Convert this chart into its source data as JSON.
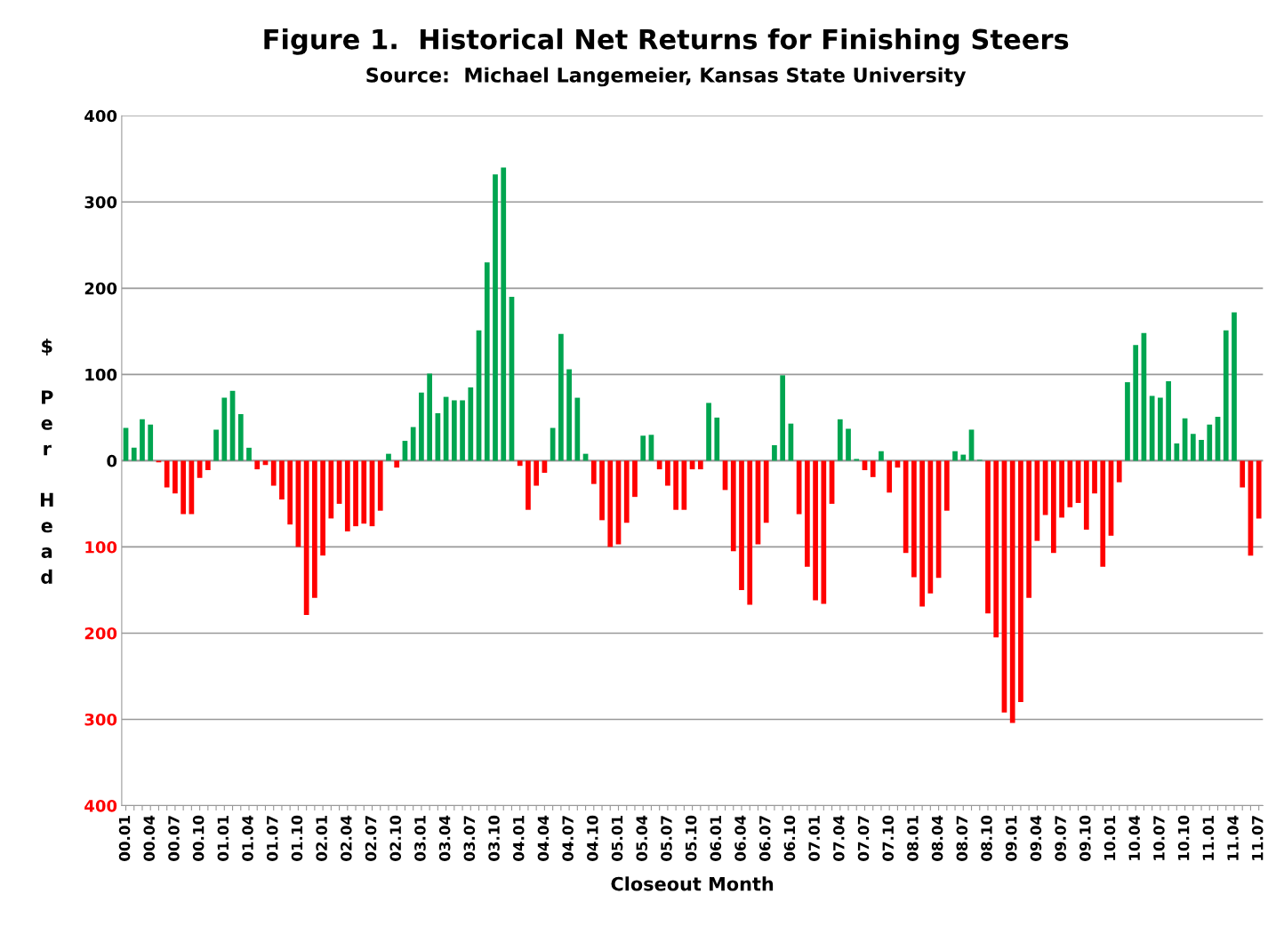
{
  "chart_data": {
    "type": "bar",
    "title": "Figure 1.  Historical Net Returns for Finishing Steers",
    "subtitle": "Source:  Michael Langemeier, Kansas State University",
    "xlabel": "Closeout Month",
    "ylabel": "$ Per Head",
    "categories": [
      "00.01",
      null,
      null,
      "00.04",
      null,
      null,
      "00.07",
      null,
      null,
      "00.10",
      null,
      null,
      "01.01",
      null,
      null,
      "01.04",
      null,
      null,
      "01.07",
      null,
      null,
      "01.10",
      null,
      null,
      "02.01",
      null,
      null,
      "02.04",
      null,
      null,
      "02.07",
      null,
      null,
      "02.10",
      null,
      null,
      "03.01",
      null,
      null,
      "03.04",
      null,
      null,
      "03.07",
      null,
      null,
      "03.10",
      null,
      null,
      "04.01",
      null,
      null,
      "04.04",
      null,
      null,
      "04.07",
      null,
      null,
      "04.10",
      null,
      null,
      "05.01",
      null,
      null,
      "05.04",
      null,
      null,
      "05.07",
      null,
      null,
      "05.10",
      null,
      null,
      "06.01",
      null,
      null,
      "06.04",
      null,
      null,
      "06.07",
      null,
      null,
      "06.10",
      null,
      null,
      "07.01",
      null,
      null,
      "07.04",
      null,
      null,
      "07.07",
      null,
      null,
      "07.10",
      null,
      null,
      "08.01",
      null,
      null,
      "08.04",
      null,
      null,
      "08.07",
      null,
      null,
      "08.10",
      null,
      null,
      "09.01",
      null,
      null,
      "09.04",
      null,
      null,
      "09.07",
      null,
      null,
      "09.10",
      null,
      null,
      "10.01",
      null,
      null,
      "10.04",
      null,
      null,
      "10.07",
      null,
      null,
      "10.10",
      null,
      null,
      "11.01",
      null,
      null,
      "11.04",
      null,
      null,
      "11.07"
    ],
    "values": [
      38,
      15,
      48,
      42,
      -2,
      -31,
      -38,
      -62,
      -62,
      -20,
      -11,
      36,
      73,
      81,
      54,
      15,
      -10,
      -5,
      -29,
      -45,
      -74,
      -100,
      -179,
      -159,
      -110,
      -67,
      -50,
      -82,
      -76,
      -73,
      -76,
      -58,
      8,
      -8,
      23,
      39,
      79,
      101,
      55,
      74,
      70,
      70,
      85,
      151,
      230,
      332,
      340,
      190,
      -6,
      -57,
      -29,
      -14,
      38,
      147,
      106,
      73,
      8,
      -27,
      -69,
      -100,
      -97,
      -72,
      -42,
      29,
      30,
      -10,
      -29,
      -57,
      -57,
      -10,
      -10,
      67,
      50,
      -34,
      -105,
      -150,
      -167,
      -97,
      -72,
      18,
      99,
      43,
      -62,
      -123,
      -162,
      -166,
      -50,
      48,
      37,
      2,
      -11,
      -19,
      11,
      -37,
      -8,
      -107,
      -135,
      -169,
      -154,
      -136,
      -58,
      11,
      7,
      36,
      1,
      -177,
      -205,
      -292,
      -304,
      -280,
      -159,
      -93,
      -63,
      -107,
      -66,
      -54,
      -49,
      -80,
      -38,
      -123,
      -87,
      -25,
      91,
      134,
      148,
      75,
      73,
      92,
      20,
      49,
      31,
      24,
      42,
      51,
      151,
      172,
      -31,
      -110,
      -67
    ],
    "colors": [
      "#00a550",
      "#00a550",
      "#00a550",
      "#00a550",
      "#ff0000",
      "#ff0000",
      "#ff0000",
      "#ff0000",
      "#ff0000",
      "#ff0000",
      "#ff0000",
      "#00a550",
      "#00a550",
      "#00a550",
      "#00a550",
      "#00a550",
      "#ff0000",
      "#ff0000",
      "#ff0000",
      "#ff0000",
      "#ff0000",
      "#ff0000",
      "#ff0000",
      "#ff0000",
      "#ff0000",
      "#ff0000",
      "#ff0000",
      "#ff0000",
      "#ff0000",
      "#ff0000",
      "#ff0000",
      "#ff0000",
      "#00a550",
      "#ff0000",
      "#00a550",
      "#00a550",
      "#00a550",
      "#00a550",
      "#00a550",
      "#00a550",
      "#00a550",
      "#00a550",
      "#00a550",
      "#00a550",
      "#00a550",
      "#00a550",
      "#00a550",
      "#00a550",
      "#ff0000",
      "#ff0000",
      "#ff0000",
      "#ff0000",
      "#00a550",
      "#00a550",
      "#00a550",
      "#00a550",
      "#00a550",
      "#ff0000",
      "#ff0000",
      "#ff0000",
      "#ff0000",
      "#ff0000",
      "#ff0000",
      "#00a550",
      "#00a550",
      "#ff0000",
      "#ff0000",
      "#ff0000",
      "#ff0000",
      "#ff0000",
      "#ff0000",
      "#00a550",
      "#00a550",
      "#ff0000",
      "#ff0000",
      "#ff0000",
      "#ff0000",
      "#ff0000",
      "#ff0000",
      "#00a550",
      "#00a550",
      "#00a550",
      "#ff0000",
      "#ff0000",
      "#ff0000",
      "#ff0000",
      "#ff0000",
      "#00a550",
      "#00a550",
      "#00a550",
      "#ff0000",
      "#ff0000",
      "#00a550",
      "#ff0000",
      "#ff0000",
      "#ff0000",
      "#ff0000",
      "#ff0000",
      "#ff0000",
      "#ff0000",
      "#ff0000",
      "#00a550",
      "#00a550",
      "#00a550",
      "#00a550",
      "#ff0000",
      "#ff0000",
      "#ff0000",
      "#ff0000",
      "#ff0000",
      "#ff0000",
      "#ff0000",
      "#ff0000",
      "#ff0000",
      "#ff0000",
      "#ff0000",
      "#ff0000",
      "#ff0000",
      "#ff0000",
      "#ff0000",
      "#ff0000",
      "#ff0000",
      "#00a550",
      "#00a550",
      "#00a550",
      "#00a550",
      "#00a550",
      "#00a550",
      "#00a550",
      "#00a550",
      "#00a550",
      "#00a550",
      "#00a550",
      "#00a550",
      "#00a550",
      "#00a550",
      "#ff0000",
      "#ff0000",
      "#ff0000"
    ],
    "ylim": [
      -400,
      400
    ],
    "yticks": [
      400,
      300,
      200,
      100,
      0,
      {
        "value": -100,
        "label": "100"
      },
      {
        "value": -200,
        "label": "200"
      },
      {
        "value": -300,
        "label": "300"
      },
      {
        "value": -400,
        "label": "400"
      }
    ],
    "grid": "y"
  }
}
